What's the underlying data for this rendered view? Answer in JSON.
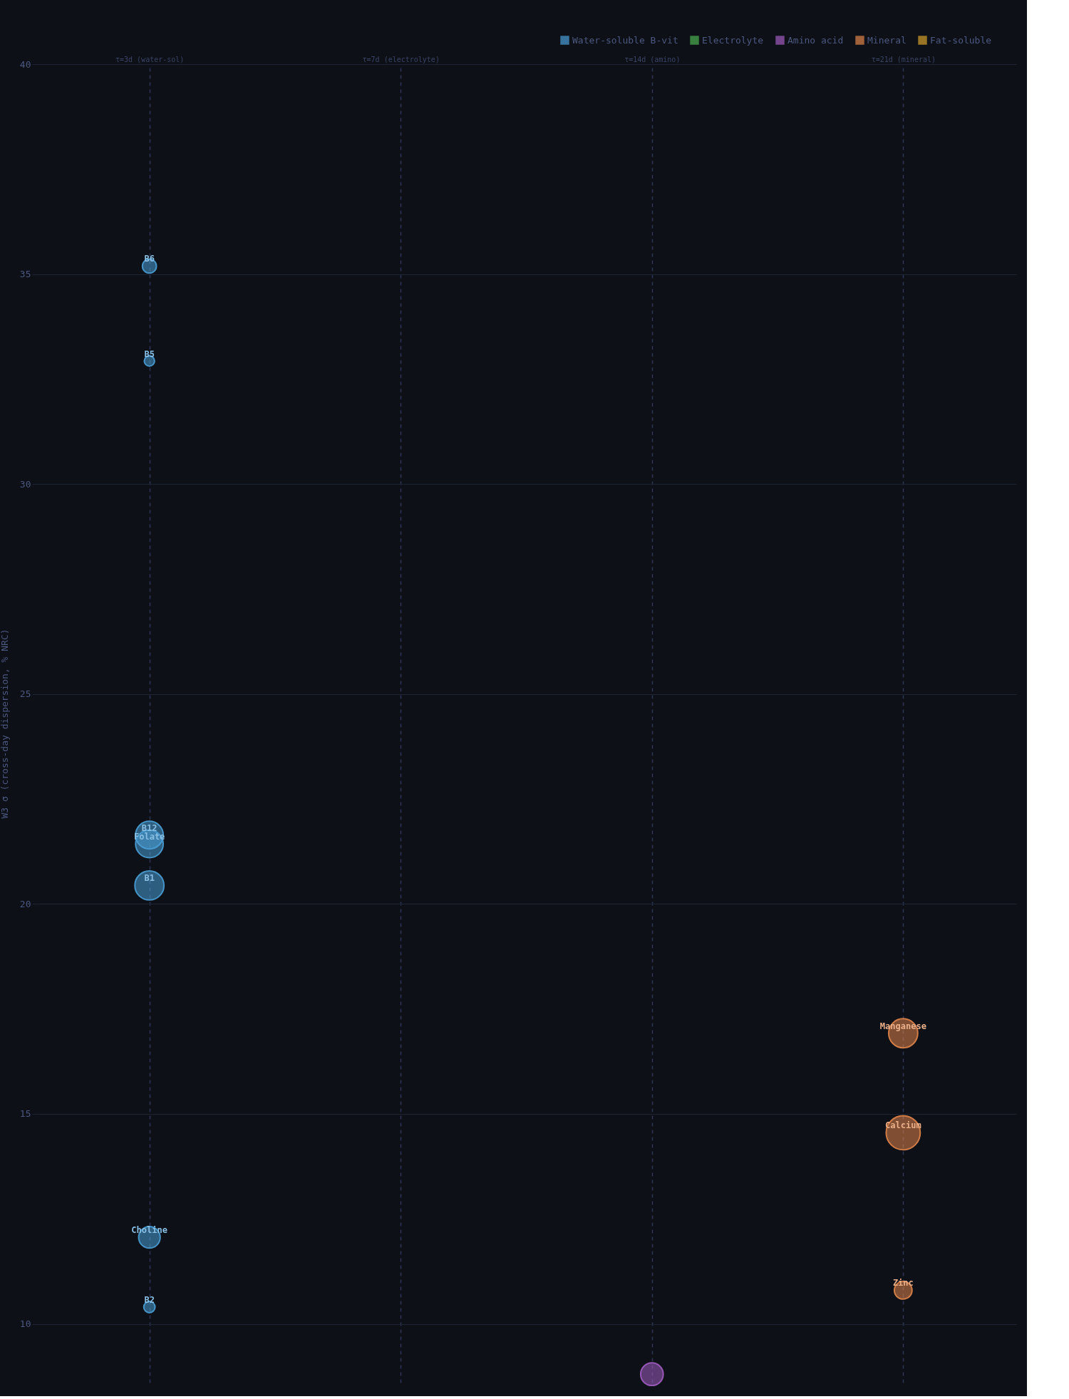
{
  "chart_data": {
    "type": "bubble",
    "ylabel": "W3 σ (cross-day dispersion, % NRC)",
    "categories": [
      "τ=3d (water-sol)",
      "τ=7d (electrolyte)",
      "τ=14d (amino)",
      "τ=21d (mineral)"
    ],
    "ylim": [
      8.6,
      40
    ],
    "yticks": [
      10,
      15,
      20,
      25,
      30,
      35,
      40
    ],
    "grid": true,
    "legend": "top right",
    "marker": "circle",
    "line_style": "dashed",
    "series": [
      {
        "name": "Water-soluble B-vit",
        "color": "#4a9ed6",
        "x": [
          "τ=3d (water-sol)",
          "τ=3d (water-sol)",
          "τ=3d (water-sol)",
          "τ=3d (water-sol)",
          "τ=3d (water-sol)",
          "τ=3d (water-sol)",
          "τ=3d (water-sol)"
        ],
        "values": [
          35.19,
          32.93,
          21.64,
          21.43,
          20.44,
          12.06,
          10.4
        ],
        "sizes": [
          0.17,
          0.09,
          0.66,
          0.66,
          0.73,
          0.4,
          0.11
        ]
      },
      {
        "name": "Electrolyte",
        "color": "#4caf50",
        "values": [
          null,
          null,
          null,
          null
        ]
      },
      {
        "name": "Amino acid",
        "color": "#a05cc0",
        "x": [
          "τ=14d (amino)"
        ],
        "values": [
          8.8
        ],
        "sizes": [
          0.44
        ]
      },
      {
        "name": "Mineral",
        "color": "#e0844a",
        "x": [
          "τ=21d (mineral)",
          "τ=21d (mineral)",
          "τ=21d (mineral)"
        ],
        "values": [
          16.92,
          14.55,
          10.8
        ],
        "sizes": [
          0.73,
          1,
          0.27
        ]
      },
      {
        "name": "Fat-soluble",
        "color": "#d4a02a",
        "values": [
          null,
          null,
          null,
          null
        ]
      }
    ],
    "annotations": [
      {
        "text": "B6",
        "x": "τ=3d (water-sol)",
        "y": 35.19
      },
      {
        "text": "B5",
        "x": "τ=3d (water-sol)",
        "y": 32.93
      },
      {
        "text": "B12",
        "x": "τ=3d (water-sol)",
        "y": 21.64
      },
      {
        "text": "Folate",
        "x": "τ=3d (water-sol)",
        "y": 21.43
      },
      {
        "text": "B1",
        "x": "τ=3d (water-sol)",
        "y": 20.44
      },
      {
        "text": "Choline",
        "x": "τ=3d (water-sol)",
        "y": 12.06
      },
      {
        "text": "B2",
        "x": "τ=3d (water-sol)",
        "y": 10.4
      },
      {
        "text": "Manganese",
        "x": "τ=21d (mineral)",
        "y": 16.92
      },
      {
        "text": "Calcium",
        "x": "τ=21d (mineral)",
        "y": 14.55
      },
      {
        "text": "Zinc",
        "x": "τ=21d (mineral)",
        "y": 10.8
      }
    ]
  }
}
